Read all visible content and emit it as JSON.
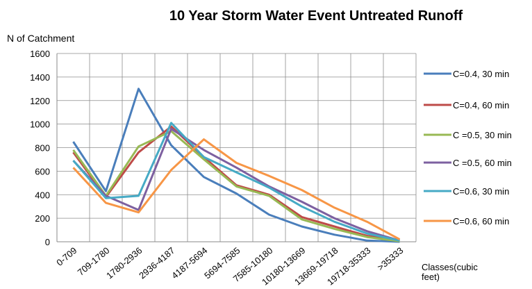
{
  "chart_data": {
    "type": "line",
    "title": "10 Year Storm Water Event Untreated Runoff",
    "y_label": "N of Catchment",
    "x_label": "Classes(cubic feet)",
    "categories": [
      "0-709",
      "709-1780",
      "1780-2936",
      "2936-4187",
      "4187-5694",
      "5694-7585",
      "7585-10180",
      "10180-13669",
      "13669-19718",
      "19718-35333",
      ">35333"
    ],
    "series": [
      {
        "name": "C=0.4, 30 min",
        "color": "#4a7ebb",
        "values": [
          850,
          430,
          1300,
          820,
          550,
          410,
          230,
          130,
          60,
          10,
          0
        ]
      },
      {
        "name": "C=0.4,  60 min",
        "color": "#be4b48",
        "values": [
          760,
          380,
          760,
          980,
          720,
          480,
          400,
          210,
          130,
          50,
          10
        ]
      },
      {
        "name": "C =0.5,  30 min",
        "color": "#98b954",
        "values": [
          780,
          390,
          810,
          940,
          700,
          470,
          390,
          190,
          110,
          40,
          5
        ]
      },
      {
        "name": "C =0.5,  60 min",
        "color": "#7d60a0",
        "values": [
          690,
          390,
          270,
          960,
          780,
          630,
          470,
          340,
          200,
          90,
          10
        ]
      },
      {
        "name": "C=0.6,  30 min",
        "color": "#46aac5",
        "values": [
          690,
          370,
          390,
          1010,
          720,
          590,
          460,
          300,
          170,
          70,
          10
        ]
      },
      {
        "name": "C=0.6, 60 min",
        "color": "#f79646",
        "values": [
          630,
          330,
          250,
          610,
          870,
          670,
          560,
          440,
          290,
          170,
          20
        ]
      }
    ],
    "ylim": [
      0,
      1600
    ],
    "yticks": [
      0,
      200,
      400,
      600,
      800,
      1000,
      1200,
      1400,
      1600
    ],
    "grid": true,
    "legend": "right"
  }
}
